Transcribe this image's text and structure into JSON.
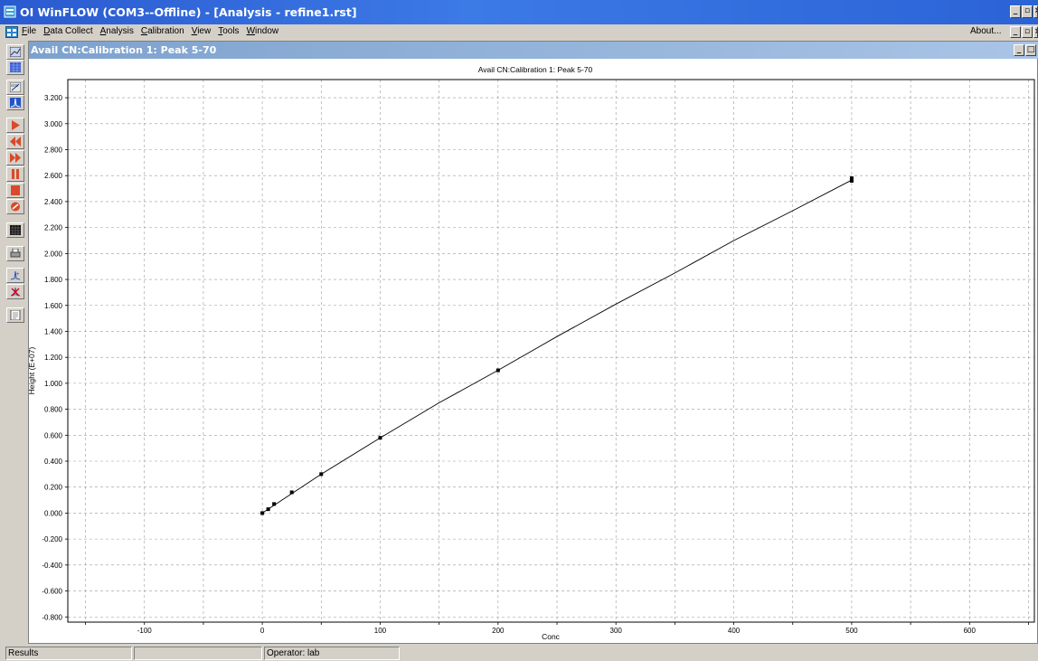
{
  "window": {
    "title": "OI WinFLOW (COM3--Offline) - [Analysis - refine1.rst]"
  },
  "menu": {
    "items": [
      {
        "pre": "",
        "u": "F",
        "post": "ile"
      },
      {
        "pre": "",
        "u": "D",
        "post": "ata Collect"
      },
      {
        "pre": "",
        "u": "A",
        "post": "nalysis"
      },
      {
        "pre": "",
        "u": "C",
        "post": "alibration"
      },
      {
        "pre": "",
        "u": "V",
        "post": "iew"
      },
      {
        "pre": "",
        "u": "T",
        "post": "ools"
      },
      {
        "pre": "",
        "u": "W",
        "post": "indow"
      }
    ],
    "about": "About..."
  },
  "child_window": {
    "title": "Avail CN:Calibration   1: Peak 5-70"
  },
  "toolbar": {
    "icons": [
      "chart-icon",
      "grid-icon",
      "calibration-icon",
      "peak-icon",
      "play-icon",
      "rewind-icon",
      "fast-forward-icon",
      "pause-icon",
      "stop-icon",
      "cancel-icon",
      "matrix-icon",
      "print-icon",
      "add-peak-icon",
      "delete-peak-icon",
      "report-icon"
    ]
  },
  "statusbar": {
    "pane1": "Results",
    "pane2": "",
    "pane3": "Operator: lab"
  },
  "chart_data": {
    "type": "line",
    "title": "Avail CN:Calibration   1: Peak 5-70",
    "xlabel": "Conc",
    "ylabel": "Height (E+07)",
    "xlim": [
      -165,
      655
    ],
    "ylim": [
      -0.84,
      3.34
    ],
    "xticks": [
      -100,
      0,
      100,
      200,
      300,
      400,
      500,
      600
    ],
    "yticks": [
      3.2,
      3.0,
      2.8,
      2.6,
      2.4,
      2.2,
      2.0,
      1.8,
      1.6,
      1.4,
      1.2,
      1.0,
      0.8,
      0.6,
      0.4,
      0.2,
      0.0,
      -0.2,
      -0.4,
      -0.6,
      -0.8
    ],
    "ytick_labels": [
      "3.200",
      "3.000",
      "2.800",
      "2.600",
      "2.400",
      "2.200",
      "2.000",
      "1.800",
      "1.600",
      "1.400",
      "1.200",
      "1.000",
      "0.800",
      "0.600",
      "0.400",
      "0.200",
      "0.000",
      "-0.200",
      "-0.400",
      "-0.600",
      "-0.800"
    ],
    "grid": true,
    "points": [
      {
        "x": 0,
        "y": 0.0
      },
      {
        "x": 5,
        "y": 0.03
      },
      {
        "x": 10,
        "y": 0.07
      },
      {
        "x": 25,
        "y": 0.16
      },
      {
        "x": 50,
        "y": 0.3
      },
      {
        "x": 100,
        "y": 0.58
      },
      {
        "x": 200,
        "y": 1.1
      },
      {
        "x": 500,
        "y": 2.56
      },
      {
        "x": 500,
        "y": 2.58
      }
    ],
    "curve": [
      [
        0,
        0.0
      ],
      [
        50,
        0.3
      ],
      [
        100,
        0.58
      ],
      [
        150,
        0.85
      ],
      [
        200,
        1.1
      ],
      [
        250,
        1.36
      ],
      [
        300,
        1.61
      ],
      [
        350,
        1.85
      ],
      [
        400,
        2.1
      ],
      [
        450,
        2.33
      ],
      [
        500,
        2.565
      ]
    ],
    "colors": {
      "line": "#000000",
      "grid": "#9a9a9a",
      "background": "#ffffff"
    }
  }
}
